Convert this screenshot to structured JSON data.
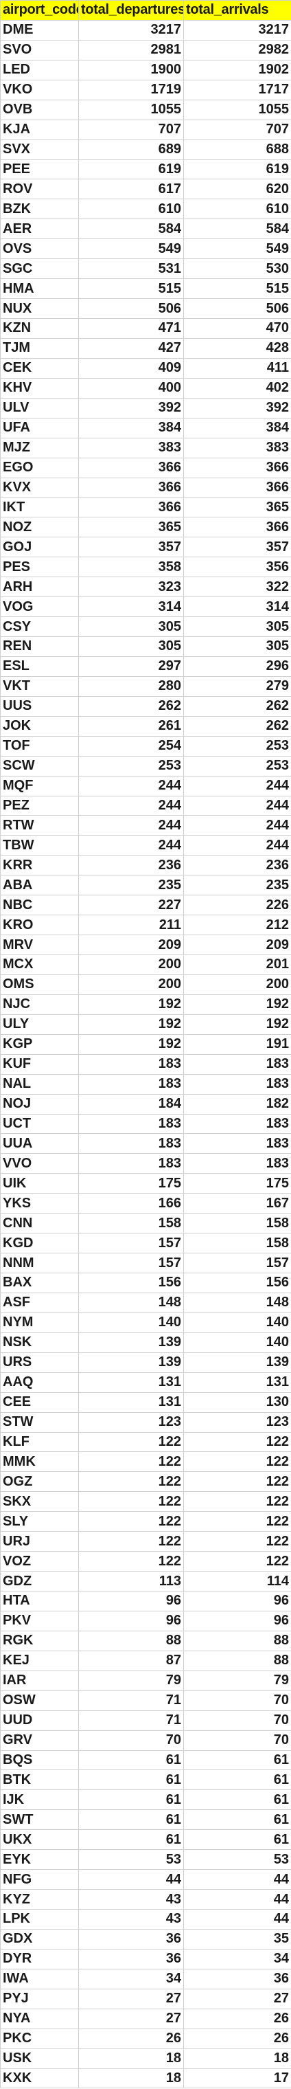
{
  "columns": [
    "airport_code",
    "total_departures",
    "total_arrivals"
  ],
  "header_color": "#ffff00",
  "rows": [
    [
      "DME",
      3217,
      3217
    ],
    [
      "SVO",
      2981,
      2982
    ],
    [
      "LED",
      1900,
      1902
    ],
    [
      "VKO",
      1719,
      1717
    ],
    [
      "OVB",
      1055,
      1055
    ],
    [
      "KJA",
      707,
      707
    ],
    [
      "SVX",
      689,
      688
    ],
    [
      "PEE",
      619,
      619
    ],
    [
      "ROV",
      617,
      620
    ],
    [
      "BZK",
      610,
      610
    ],
    [
      "AER",
      584,
      584
    ],
    [
      "OVS",
      549,
      549
    ],
    [
      "SGC",
      531,
      530
    ],
    [
      "HMA",
      515,
      515
    ],
    [
      "NUX",
      506,
      506
    ],
    [
      "KZN",
      471,
      470
    ],
    [
      "TJM",
      427,
      428
    ],
    [
      "CEK",
      409,
      411
    ],
    [
      "KHV",
      400,
      402
    ],
    [
      "ULV",
      392,
      392
    ],
    [
      "UFA",
      384,
      384
    ],
    [
      "MJZ",
      383,
      383
    ],
    [
      "EGO",
      366,
      366
    ],
    [
      "KVX",
      366,
      366
    ],
    [
      "IKT",
      366,
      365
    ],
    [
      "NOZ",
      365,
      366
    ],
    [
      "GOJ",
      357,
      357
    ],
    [
      "PES",
      358,
      356
    ],
    [
      "ARH",
      323,
      322
    ],
    [
      "VOG",
      314,
      314
    ],
    [
      "CSY",
      305,
      305
    ],
    [
      "REN",
      305,
      305
    ],
    [
      "ESL",
      297,
      296
    ],
    [
      "VKT",
      280,
      279
    ],
    [
      "UUS",
      262,
      262
    ],
    [
      "JOK",
      261,
      262
    ],
    [
      "TOF",
      254,
      253
    ],
    [
      "SCW",
      253,
      253
    ],
    [
      "MQF",
      244,
      244
    ],
    [
      "PEZ",
      244,
      244
    ],
    [
      "RTW",
      244,
      244
    ],
    [
      "TBW",
      244,
      244
    ],
    [
      "KRR",
      236,
      236
    ],
    [
      "ABA",
      235,
      235
    ],
    [
      "NBC",
      227,
      226
    ],
    [
      "KRO",
      211,
      212
    ],
    [
      "MRV",
      209,
      209
    ],
    [
      "MCX",
      200,
      201
    ],
    [
      "OMS",
      200,
      200
    ],
    [
      "NJC",
      192,
      192
    ],
    [
      "ULY",
      192,
      192
    ],
    [
      "KGP",
      192,
      191
    ],
    [
      "KUF",
      183,
      183
    ],
    [
      "NAL",
      183,
      183
    ],
    [
      "NOJ",
      184,
      182
    ],
    [
      "UCT",
      183,
      183
    ],
    [
      "UUA",
      183,
      183
    ],
    [
      "VVO",
      183,
      183
    ],
    [
      "UIK",
      175,
      175
    ],
    [
      "YKS",
      166,
      167
    ],
    [
      "CNN",
      158,
      158
    ],
    [
      "KGD",
      157,
      158
    ],
    [
      "NNM",
      157,
      157
    ],
    [
      "BAX",
      156,
      156
    ],
    [
      "ASF",
      148,
      148
    ],
    [
      "NYM",
      140,
      140
    ],
    [
      "NSK",
      139,
      140
    ],
    [
      "URS",
      139,
      139
    ],
    [
      "AAQ",
      131,
      131
    ],
    [
      "CEE",
      131,
      130
    ],
    [
      "STW",
      123,
      123
    ],
    [
      "KLF",
      122,
      122
    ],
    [
      "MMK",
      122,
      122
    ],
    [
      "OGZ",
      122,
      122
    ],
    [
      "SKX",
      122,
      122
    ],
    [
      "SLY",
      122,
      122
    ],
    [
      "URJ",
      122,
      122
    ],
    [
      "VOZ",
      122,
      122
    ],
    [
      "GDZ",
      113,
      114
    ],
    [
      "HTA",
      96,
      96
    ],
    [
      "PKV",
      96,
      96
    ],
    [
      "RGK",
      88,
      88
    ],
    [
      "KEJ",
      87,
      88
    ],
    [
      "IAR",
      79,
      79
    ],
    [
      "OSW",
      71,
      70
    ],
    [
      "UUD",
      71,
      70
    ],
    [
      "GRV",
      70,
      70
    ],
    [
      "BQS",
      61,
      61
    ],
    [
      "BTK",
      61,
      61
    ],
    [
      "IJK",
      61,
      61
    ],
    [
      "SWT",
      61,
      61
    ],
    [
      "UKX",
      61,
      61
    ],
    [
      "EYK",
      53,
      53
    ],
    [
      "NFG",
      44,
      44
    ],
    [
      "KYZ",
      43,
      44
    ],
    [
      "LPK",
      43,
      44
    ],
    [
      "GDX",
      36,
      35
    ],
    [
      "DYR",
      36,
      34
    ],
    [
      "IWA",
      34,
      36
    ],
    [
      "PYJ",
      27,
      27
    ],
    [
      "NYA",
      27,
      26
    ],
    [
      "PKC",
      26,
      26
    ],
    [
      "USK",
      18,
      18
    ],
    [
      "KXK",
      18,
      17
    ]
  ]
}
